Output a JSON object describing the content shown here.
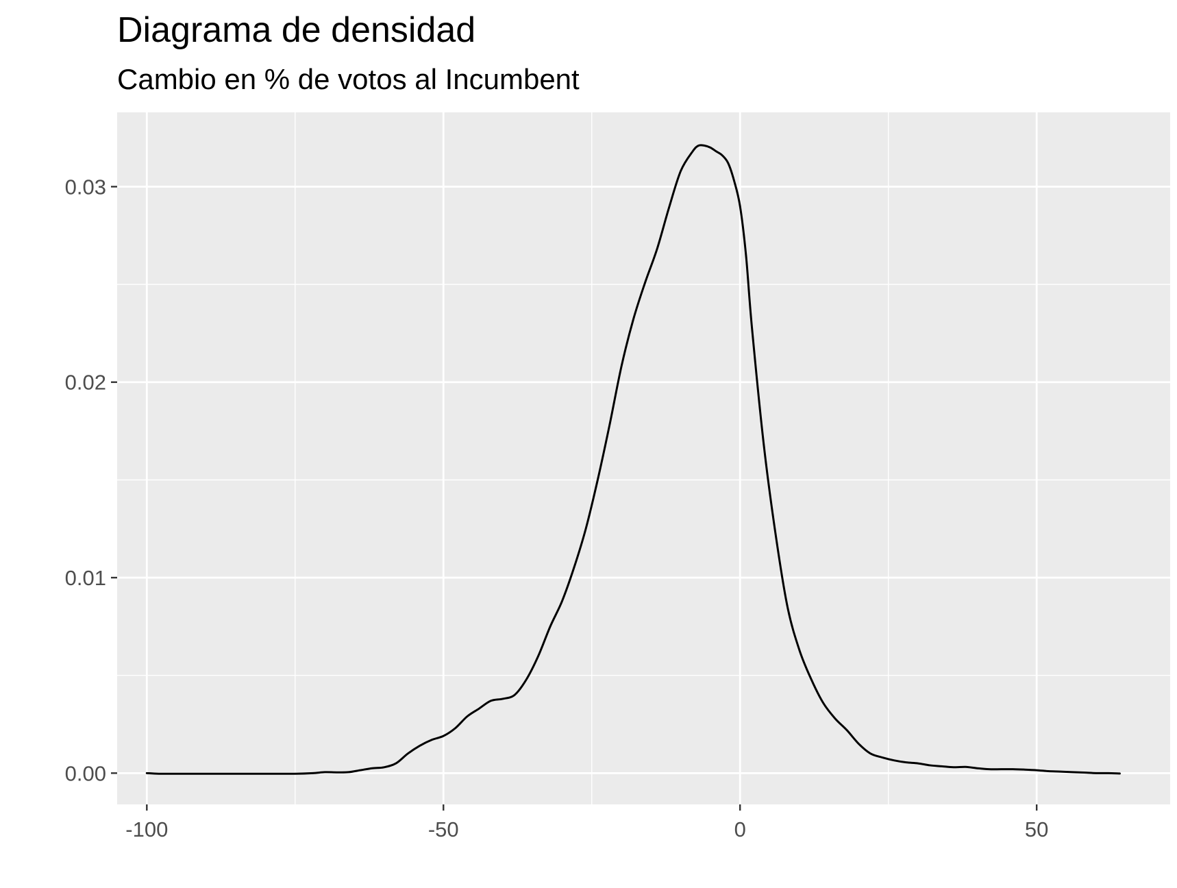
{
  "chart_data": {
    "type": "line",
    "title": "Diagrama de densidad",
    "subtitle": "Cambio en % de votos al Incumbent",
    "xlabel": "",
    "ylabel": "",
    "xlim": [
      -105,
      72.5
    ],
    "ylim": [
      -0.0016,
      0.0338
    ],
    "x_ticks": [
      -100,
      -50,
      0,
      50
    ],
    "x_tick_labels": [
      "-100",
      "-50",
      "0",
      "50"
    ],
    "y_ticks": [
      0.0,
      0.01,
      0.02,
      0.03
    ],
    "y_tick_labels": [
      "0.00",
      "0.01",
      "0.02",
      "0.03"
    ],
    "grid": true,
    "legend": "none",
    "colors": {
      "panel": "#ebebeb",
      "grid": "#ffffff",
      "line": "#000000",
      "text": "#4d4d4d"
    },
    "series": [
      {
        "x": [
          -100,
          -98,
          -95,
          -90,
          -85,
          -80,
          -75,
          -72,
          -70,
          -68,
          -66,
          -64,
          -62,
          -60,
          -58,
          -56,
          -54,
          -52,
          -50,
          -48,
          -46,
          -44,
          -42,
          -40,
          -38,
          -36,
          -34,
          -32,
          -30,
          -28,
          -26,
          -24,
          -22,
          -20,
          -18,
          -16,
          -14,
          -12,
          -10,
          -8,
          -7,
          -6,
          -5,
          -4,
          -3,
          -2,
          -1,
          0,
          1,
          2,
          4,
          6,
          8,
          10,
          12,
          14,
          16,
          18,
          20,
          22,
          24,
          26,
          28,
          30,
          32,
          34,
          36,
          38,
          40,
          42,
          44,
          46,
          48,
          50,
          52,
          54,
          56,
          58,
          60,
          62,
          64
        ],
        "y": [
          0.0,
          -3e-05,
          -3e-05,
          -3e-05,
          -3e-05,
          -3e-05,
          -3e-05,
          0.0,
          5e-05,
          4e-05,
          5e-05,
          0.00015,
          0.00025,
          0.0003,
          0.0005,
          0.001,
          0.0014,
          0.0017,
          0.0019,
          0.0023,
          0.0029,
          0.0033,
          0.0037,
          0.0038,
          0.004,
          0.0048,
          0.006,
          0.0075,
          0.0088,
          0.0105,
          0.0125,
          0.015,
          0.0178,
          0.0208,
          0.0232,
          0.0251,
          0.0268,
          0.0289,
          0.0308,
          0.0318,
          0.0321,
          0.0321,
          0.032,
          0.0318,
          0.0316,
          0.0312,
          0.0303,
          0.029,
          0.0265,
          0.0228,
          0.0168,
          0.0122,
          0.0085,
          0.0063,
          0.0048,
          0.0036,
          0.0028,
          0.0022,
          0.0015,
          0.001,
          0.0008,
          0.00065,
          0.00055,
          0.0005,
          0.0004,
          0.00035,
          0.0003,
          0.00032,
          0.00025,
          0.0002,
          0.0002,
          0.0002,
          0.00018,
          0.00015,
          0.0001,
          8e-05,
          5e-05,
          3e-05,
          0.0,
          0.0,
          -2e-05
        ]
      }
    ]
  }
}
